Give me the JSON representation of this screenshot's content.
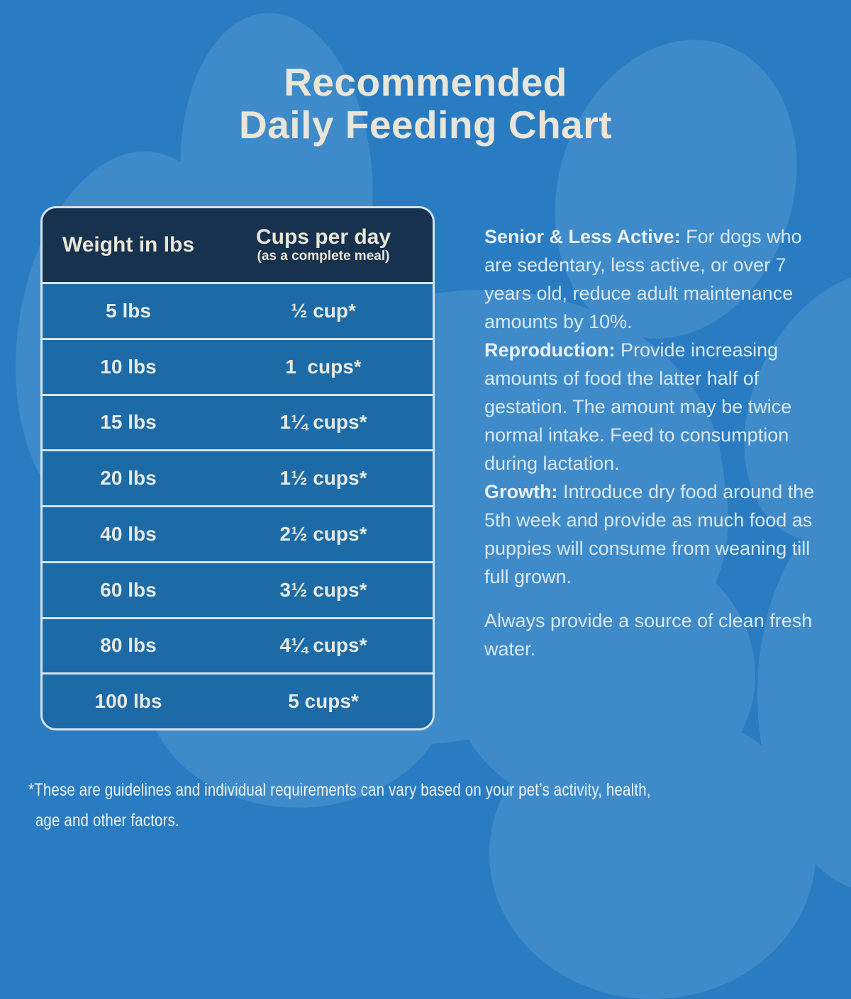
{
  "title": {
    "line1": "Recommended",
    "line2": "Daily Feeding Chart"
  },
  "table": {
    "headers": {
      "weight": "Weight in lbs",
      "cups": "Cups per day",
      "cups_sub": "(as a complete meal)"
    },
    "rows": [
      {
        "weight": "5 lbs",
        "cups": "½ cup*"
      },
      {
        "weight": "10 lbs",
        "cups": "1  cups*"
      },
      {
        "weight": "15 lbs",
        "cups": "1¼ cups*"
      },
      {
        "weight": "20 lbs",
        "cups": "1½ cups*"
      },
      {
        "weight": "40 lbs",
        "cups": "2½ cups*"
      },
      {
        "weight": "60 lbs",
        "cups": "3½ cups*"
      },
      {
        "weight": "80 lbs",
        "cups": "4¼ cups*"
      },
      {
        "weight": "100 lbs",
        "cups": "5 cups*"
      }
    ]
  },
  "notes": [
    {
      "label": "Senior & Less Active:",
      "text": "For dogs who are sedentary, less active, or over 7 years old, reduce adult maintenance amounts by 10%."
    },
    {
      "label": "Reproduction:",
      "text": "Provide increasing amounts of food the latter half of gestation. The amount may be twice normal intake. Feed to consumption during lactation."
    },
    {
      "label": "Growth:",
      "text": "Introduce dry food around the 5th week and provide as much food as puppies will consume from weaning till full grown."
    }
  ],
  "water_note": "Always provide a source of clean fresh water.",
  "footnote": {
    "line1": "*These are guidelines and individual requirements can vary based on your pet’s activity, health,",
    "line2": "age and other factors."
  },
  "colors": {
    "background": "#2a7cc2",
    "paw_shape": "#3f8bca",
    "table_row": "#1c6ba7",
    "table_header": "#17324e",
    "divider": "#d6e2ec",
    "title_text": "#e9e5d8",
    "body_text": "#d9e8f3"
  }
}
